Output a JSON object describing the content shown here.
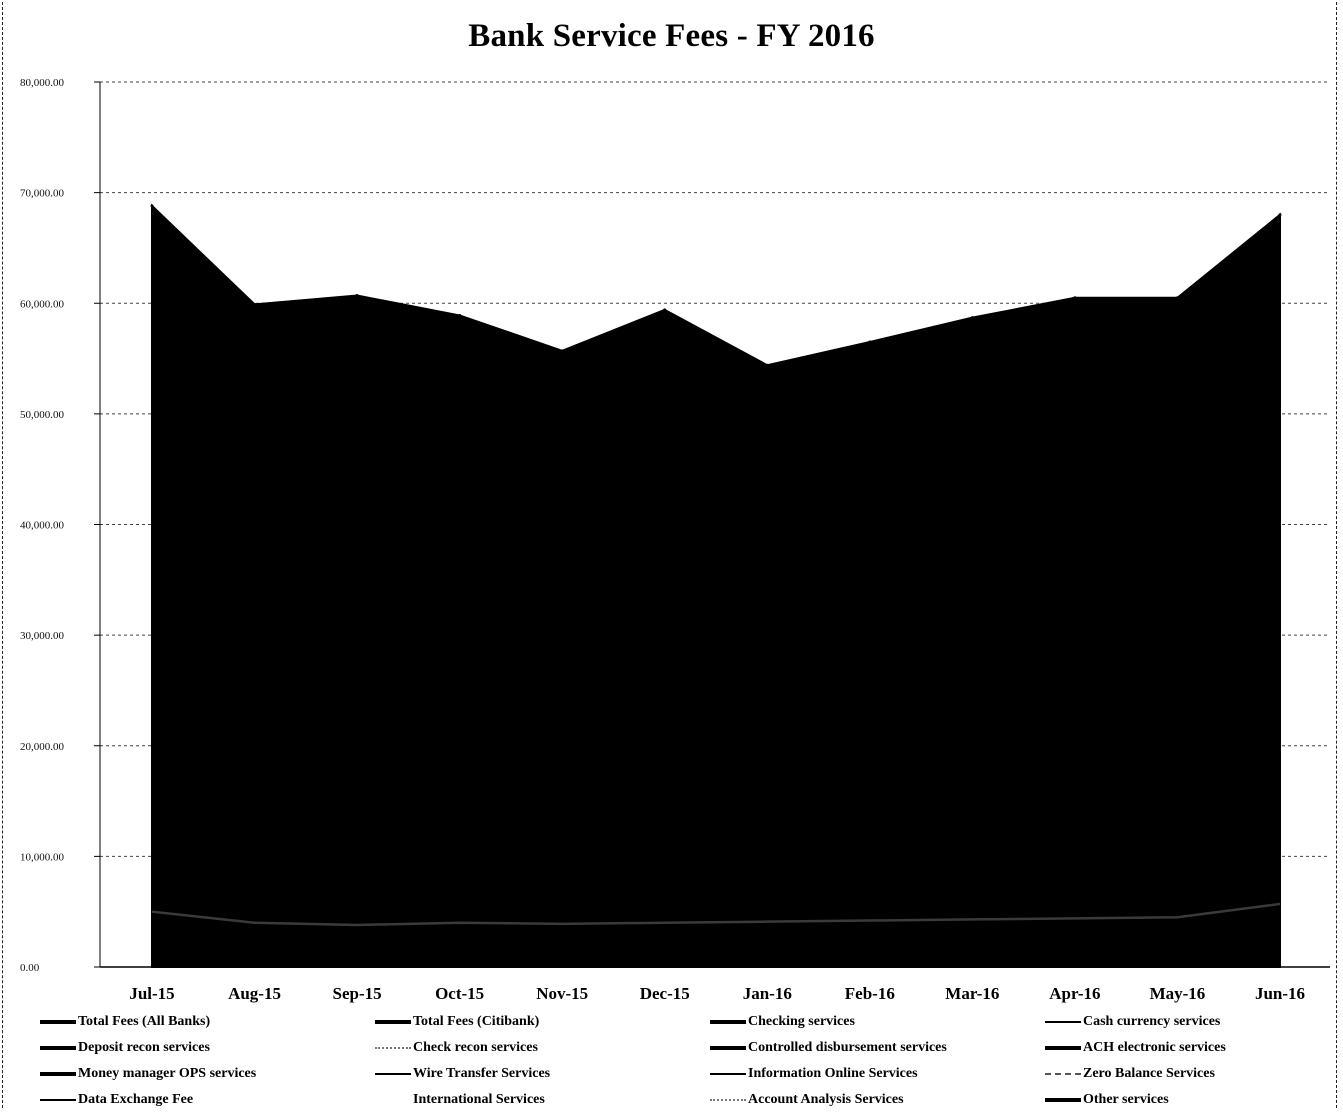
{
  "chart_data": {
    "type": "area",
    "title": "Bank Service Fees - FY 2016",
    "categories": [
      "Jul-15",
      "Aug-15",
      "Sep-15",
      "Oct-15",
      "Nov-15",
      "Dec-15",
      "Jan-16",
      "Feb-16",
      "Mar-16",
      "Apr-16",
      "May-16",
      "Jun-16"
    ],
    "yticks": [
      "0.00",
      "10,000.00",
      "20,000.00",
      "30,000.00",
      "40,000.00",
      "50,000.00",
      "60,000.00",
      "70,000.00",
      "80,000.00"
    ],
    "ylim": [
      0,
      80000
    ],
    "grid": true,
    "legend_position": "bottom",
    "series": [
      {
        "name": "Total Fees (All Banks)",
        "style": "area",
        "values": [
          68800,
          59900,
          60700,
          58900,
          55700,
          59400,
          54400,
          56500,
          58700,
          60500,
          60500,
          68000
        ]
      },
      {
        "name": "Total Fees (Citibank)",
        "style": "solid",
        "values": [
          null,
          null,
          null,
          null,
          null,
          null,
          null,
          null,
          null,
          null,
          null,
          null
        ]
      },
      {
        "name": "Checking services",
        "style": "solid",
        "values": [
          null,
          null,
          null,
          null,
          null,
          null,
          null,
          null,
          null,
          null,
          null,
          null
        ]
      },
      {
        "name": "Cash currency services",
        "style": "thin",
        "values": [
          null,
          null,
          null,
          null,
          null,
          null,
          null,
          null,
          null,
          null,
          null,
          null
        ]
      },
      {
        "name": "Deposit recon services",
        "style": "solid",
        "values": [
          null,
          null,
          null,
          null,
          null,
          null,
          null,
          null,
          null,
          null,
          null,
          null
        ]
      },
      {
        "name": "Check recon services",
        "style": "dot",
        "values": [
          null,
          null,
          null,
          null,
          null,
          null,
          null,
          null,
          null,
          null,
          null,
          null
        ]
      },
      {
        "name": "Controlled disbursement services",
        "style": "solid",
        "values": [
          null,
          null,
          null,
          null,
          null,
          null,
          null,
          null,
          null,
          null,
          null,
          null
        ]
      },
      {
        "name": "ACH electronic services",
        "style": "solid",
        "values": [
          null,
          null,
          null,
          null,
          null,
          null,
          null,
          null,
          null,
          null,
          null,
          null
        ]
      },
      {
        "name": "Money manager OPS services",
        "style": "solid",
        "values": [
          null,
          null,
          null,
          null,
          null,
          null,
          null,
          null,
          null,
          null,
          null,
          null
        ]
      },
      {
        "name": "Wire Transfer Services",
        "style": "thin",
        "values": [
          null,
          null,
          null,
          null,
          null,
          null,
          null,
          null,
          null,
          null,
          null,
          null
        ]
      },
      {
        "name": "Information Online Services",
        "style": "thin",
        "values": [
          null,
          null,
          null,
          null,
          null,
          null,
          null,
          null,
          null,
          null,
          null,
          null
        ]
      },
      {
        "name": "Zero Balance Services",
        "style": "dash",
        "values": [
          null,
          null,
          null,
          null,
          null,
          null,
          null,
          null,
          null,
          null,
          null,
          null
        ]
      },
      {
        "name": "Data Exchange Fee",
        "style": "thin",
        "values": [
          null,
          null,
          null,
          null,
          null,
          null,
          null,
          null,
          null,
          null,
          null,
          null
        ]
      },
      {
        "name": "International Services",
        "style": "none",
        "values": [
          null,
          null,
          null,
          null,
          null,
          null,
          null,
          null,
          null,
          null,
          null,
          null
        ]
      },
      {
        "name": "Account Analysis Services",
        "style": "dot",
        "values": [
          null,
          null,
          null,
          null,
          null,
          null,
          null,
          null,
          null,
          null,
          null,
          null
        ]
      },
      {
        "name": "Other services",
        "style": "solid",
        "values": [
          null,
          null,
          null,
          null,
          null,
          null,
          null,
          null,
          null,
          null,
          null,
          null
        ]
      },
      {
        "name": "",
        "style": "line",
        "values": [
          5000,
          4000,
          3800,
          4000,
          3900,
          4000,
          4100,
          4200,
          4300,
          4400,
          4500,
          5700
        ]
      }
    ]
  },
  "colors": {
    "area": "#000000",
    "grid": "#444444",
    "background": "#ffffff"
  }
}
